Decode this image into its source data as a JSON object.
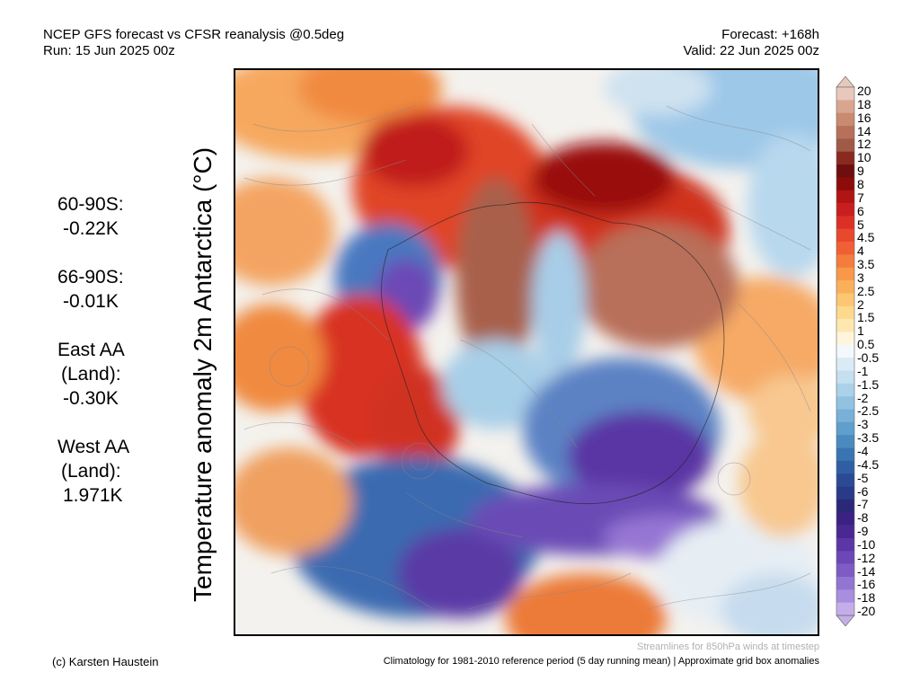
{
  "header": {
    "line1_left": "NCEP GFS forecast vs CFSR reanalysis @0.5deg",
    "line2_left": "Run: 15 Jun 2025 00z",
    "line1_right": "Forecast: +168h",
    "line2_right": "Valid: 22 Jun 2025 00z"
  },
  "map_title": "Temperature anomaly 2m Antarctica (°C)",
  "stats": [
    {
      "label_lines": [
        "60-90S:"
      ],
      "value": "-0.22K"
    },
    {
      "label_lines": [
        "66-90S:"
      ],
      "value": "-0.01K"
    },
    {
      "label_lines": [
        "East AA",
        "(Land):"
      ],
      "value": "-0.30K"
    },
    {
      "label_lines": [
        "West AA",
        "(Land):"
      ],
      "value": "1.971K"
    }
  ],
  "colorbar": {
    "labels": [
      "20",
      "18",
      "16",
      "14",
      "12",
      "10",
      "9",
      "8",
      "7",
      "6",
      "5",
      "4.5",
      "4",
      "3.5",
      "3",
      "2.5",
      "2",
      "1.5",
      "1",
      "0.5",
      "-0.5",
      "-1",
      "-1.5",
      "-2",
      "-2.5",
      "-3",
      "-3.5",
      "-4",
      "-4.5",
      "-5",
      "-6",
      "-7",
      "-8",
      "-9",
      "-10",
      "-12",
      "-14",
      "-16",
      "-18",
      "-20"
    ],
    "colors": [
      "#e8c8bc",
      "#d8a690",
      "#c98a70",
      "#b8705a",
      "#a05a48",
      "#8a2a1e",
      "#6e0e0e",
      "#8c0c0c",
      "#b01414",
      "#c81e1e",
      "#dc3026",
      "#e8482e",
      "#f06034",
      "#f47c3c",
      "#f89848",
      "#fab05a",
      "#fcc672",
      "#fdd98e",
      "#fee8b0",
      "#fff4dc",
      "#f2f8fc",
      "#dbebf6",
      "#c4dff0",
      "#acd1ea",
      "#92c2e2",
      "#78b0d8",
      "#609ecc",
      "#4a8ac0",
      "#3a74b2",
      "#305ea4",
      "#2a4a96",
      "#283a88",
      "#2c2878",
      "#3a2282",
      "#4a2894",
      "#5c36a6",
      "#6c48b6",
      "#7e5cc4",
      "#9274d2",
      "#a88ede",
      "#c4aeea"
    ]
  },
  "footer": {
    "credit": "(c) Karsten Haustein",
    "streamline_note": "Streamlines for 850hPa winds at timestep",
    "climatology_note": "Climatology for 1981-2010 reference period (5 day running mean) | Approximate grid box anomalies"
  }
}
